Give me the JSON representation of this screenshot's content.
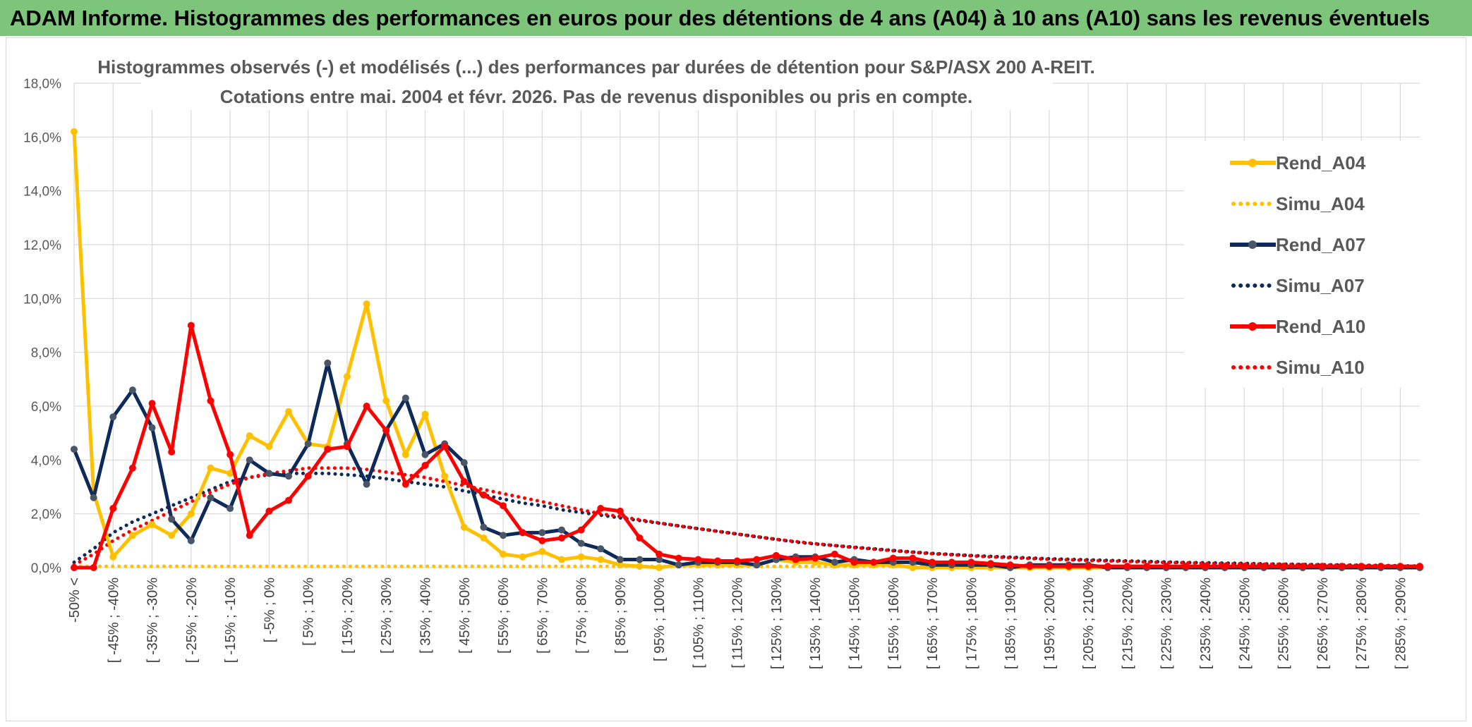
{
  "header": {
    "title": "ADAM Informe. Histogrammes des performances en euros pour des détentions de 4 ans (A04) à 10 ans (A10) sans les revenus éventuels"
  },
  "colors": {
    "header_bg": "#7cc57a",
    "a04": "#ffc000",
    "a07": "#0e2a5a",
    "a07_marker": "#4b5568",
    "a10": "#ff0000",
    "grid": "#d9d9d9"
  },
  "chart_data": {
    "type": "line",
    "title": "Histogrammes observés (-) et modélisés (...) des performances par durées de détention pour S&P/ASX 200 A-REIT.",
    "subtitle": "Cotations entre mai. 2004 et févr. 2026. Pas de revenus disponibles ou pris en compte.",
    "xlabel": "",
    "ylabel": "",
    "ylim": [
      0,
      18
    ],
    "yticks": [
      "0,0%",
      "2,0%",
      "4,0%",
      "6,0%",
      "8,0%",
      "10,0%",
      "12,0%",
      "14,0%",
      "16,0%",
      "18,0%"
    ],
    "legend_position": "right",
    "categories": [
      "-50% <",
      "[ -50% ; -45% [",
      "[ -45% ; -40% [",
      "[ -40% ; -35% [",
      "[ -35% ; -30% [",
      "[ -30% ; -25% [",
      "[ -25% ; -20% [",
      "[ -20% ; -15% [",
      "[ -15% ; -10% [",
      "[ -10% ; -5% [",
      "[ -5% ; 0% [",
      "[ 0% ; 5% [",
      "[ 5% ; 10% [",
      "[ 10% ; 15% [",
      "[ 15% ; 20% [",
      "[ 20% ; 25% [",
      "[ 25% ; 30% [",
      "[ 30% ; 35% [",
      "[ 35% ; 40% [",
      "[ 40% ; 45% [",
      "[ 45% ; 50% [",
      "[ 50% ; 55% [",
      "[ 55% ; 60% [",
      "[ 60% ; 65% [",
      "[ 65% ; 70% [",
      "[ 70% ; 75% [",
      "[ 75% ; 80% [",
      "[ 80% ; 85% [",
      "[ 85% ; 90% [",
      "[ 90% ; 95% [",
      "[ 95% ; 100% [",
      "[ 100% ; 105% [",
      "[ 105% ; 110% [",
      "[ 110% ; 115% [",
      "[ 115% ; 120% [",
      "[ 120% ; 125% [",
      "[ 125% ; 130% [",
      "[ 130% ; 135% [",
      "[ 135% ; 140% [",
      "[ 140% ; 145% [",
      "[ 145% ; 150% [",
      "[ 150% ; 155% [",
      "[ 155% ; 160% [",
      "[ 160% ; 165% [",
      "[ 165% ; 170% [",
      "[ 170% ; 175% [",
      "[ 175% ; 180% [",
      "[ 180% ; 185% [",
      "[ 185% ; 190% [",
      "[ 190% ; 195% [",
      "[ 195% ; 200% [",
      "[ 200% ; 205% [",
      "[ 205% ; 210% [",
      "[ 210% ; 215% [",
      "[ 215% ; 220% [",
      "[ 220% ; 225% [",
      "[ 225% ; 230% [",
      "[ 230% ; 235% [",
      "[ 235% ; 240% [",
      "[ 240% ; 245% [",
      "[ 245% ; 250% [",
      "[ 250% ; 255% [",
      "[ 255% ; 260% [",
      "[ 260% ; 265% [",
      "[ 265% ; 270% [",
      "[ 270% ; 275% [",
      "[ 275% ; 280% [",
      "[ 280% ; 285% [",
      "[ 285% ; 290% [",
      "[ 290% ; 295% ["
    ],
    "xtick_labels": [
      "-50% <",
      "[ -45% ; -40%",
      "[ -35% ; -30%",
      "[ -25% ; -20%",
      "[ -15% ; -10%",
      "[ -5% ; 0%",
      "[ 5% ; 10%",
      "[ 15% ; 20%",
      "[ 25% ; 30%",
      "[ 35% ; 40%",
      "[ 45% ; 50%",
      "[ 55% ; 60%",
      "[ 65% ; 70%",
      "[ 75% ; 80%",
      "[ 85% ; 90%",
      "[ 95% ; 100%",
      "[ 105% ; 110%",
      "[ 115% ; 120%",
      "[ 125% ; 130%",
      "[ 135% ; 140%",
      "[ 145% ; 150%",
      "[ 155% ; 160%",
      "[ 165% ; 170%",
      "[ 175% ; 180%",
      "[ 185% ; 190%",
      "[ 195% ; 200%",
      "[ 205% ; 210%",
      "[ 215% ; 220%",
      "[ 225% ; 230%",
      "[ 235% ; 240%",
      "[ 245% ; 250%",
      "[ 255% ; 260%",
      "[ 265% ; 270%",
      "[ 275% ; 280%",
      "[ 285% ; 290%"
    ],
    "series": [
      {
        "name": "Rend_A04",
        "style": "solid",
        "color": "#ffc000",
        "values": [
          16.2,
          2.8,
          0.4,
          1.2,
          1.6,
          1.2,
          2.0,
          3.7,
          3.5,
          4.9,
          4.5,
          5.8,
          4.6,
          4.5,
          7.1,
          9.8,
          6.2,
          4.2,
          5.7,
          3.4,
          1.5,
          1.1,
          0.5,
          0.4,
          0.6,
          0.3,
          0.4,
          0.3,
          0.1,
          0.05,
          0.0,
          0.1,
          0.1,
          0.1,
          0.1,
          0.1,
          0.3,
          0.2,
          0.2,
          0.1,
          0.1,
          0.1,
          0.1,
          0.0,
          0.0,
          0.0,
          0.0,
          0.0,
          0.0,
          0.0,
          0.0,
          0.0,
          0.0,
          0.0,
          0.0,
          0.0,
          0.0,
          0.0,
          0.0,
          0.0,
          0.0,
          0.0,
          0.0,
          0.0,
          0.0,
          0.0,
          0.0,
          0.0,
          0.0,
          0.0
        ]
      },
      {
        "name": "Simu_A04",
        "style": "dotted",
        "color": "#ffc000",
        "values": [
          0.05,
          0.05,
          0.05,
          0.05,
          0.05,
          0.05,
          0.05,
          0.05,
          0.05,
          0.05,
          0.05,
          0.05,
          0.05,
          0.05,
          0.05,
          0.05,
          0.05,
          0.05,
          0.05,
          0.05,
          0.05,
          0.05,
          0.05,
          0.05,
          0.05,
          0.05,
          0.05,
          0.05,
          0.05,
          0.05,
          0.05,
          0.05,
          0.05,
          0.05,
          0.05,
          0.05,
          0.05,
          0.05,
          0.05,
          0.05,
          0.05,
          0.05,
          0.05,
          0.05,
          0.05,
          0.05,
          0.05,
          0.05,
          0.05,
          0.05,
          0.05,
          0.05,
          0.05,
          0.05,
          0.05,
          0.05,
          0.05,
          0.05,
          0.05,
          0.05,
          0.05,
          0.05,
          0.05,
          0.05,
          0.05,
          0.05,
          0.05,
          0.05,
          0.05,
          0.05
        ]
      },
      {
        "name": "Rend_A07",
        "style": "solid",
        "color": "#0e2a5a",
        "values": [
          4.4,
          2.6,
          5.6,
          6.6,
          5.2,
          1.8,
          1.0,
          2.6,
          2.2,
          4.0,
          3.5,
          3.4,
          4.6,
          7.6,
          4.6,
          3.1,
          5.1,
          6.3,
          4.2,
          4.6,
          3.9,
          1.5,
          1.2,
          1.3,
          1.3,
          1.4,
          0.9,
          0.7,
          0.3,
          0.3,
          0.3,
          0.1,
          0.2,
          0.2,
          0.2,
          0.1,
          0.3,
          0.4,
          0.4,
          0.2,
          0.3,
          0.2,
          0.2,
          0.2,
          0.1,
          0.1,
          0.1,
          0.1,
          0.0,
          0.1,
          0.1,
          0.1,
          0.1,
          0.0,
          0.0,
          0.0,
          0.0,
          0.0,
          0.0,
          0.0,
          0.0,
          0.0,
          0.0,
          0.0,
          0.0,
          0.0,
          0.0,
          0.0,
          0.0,
          0.0
        ]
      },
      {
        "name": "Simu_A07",
        "style": "dotted",
        "color": "#0e2a5a",
        "values": [
          0.2,
          0.7,
          1.3,
          1.7,
          2.0,
          2.3,
          2.6,
          2.9,
          3.2,
          3.35,
          3.45,
          3.5,
          3.5,
          3.5,
          3.45,
          3.4,
          3.3,
          3.2,
          3.1,
          3.0,
          2.85,
          2.7,
          2.55,
          2.4,
          2.3,
          2.15,
          2.05,
          1.95,
          1.85,
          1.75,
          1.65,
          1.55,
          1.45,
          1.35,
          1.25,
          1.15,
          1.05,
          0.95,
          0.88,
          0.82,
          0.76,
          0.7,
          0.64,
          0.58,
          0.53,
          0.49,
          0.45,
          0.42,
          0.39,
          0.36,
          0.33,
          0.31,
          0.29,
          0.27,
          0.25,
          0.23,
          0.21,
          0.19,
          0.18,
          0.17,
          0.16,
          0.14,
          0.13,
          0.12,
          0.11,
          0.1,
          0.09,
          0.08,
          0.07,
          0.06
        ]
      },
      {
        "name": "Rend_A10",
        "style": "solid",
        "color": "#ff0000",
        "values": [
          0.0,
          0.0,
          2.2,
          3.7,
          6.1,
          4.3,
          9.0,
          6.2,
          4.2,
          1.2,
          2.1,
          2.5,
          3.4,
          4.4,
          4.5,
          6.0,
          5.1,
          3.1,
          3.8,
          4.5,
          3.2,
          2.7,
          2.3,
          1.3,
          1.0,
          1.1,
          1.4,
          2.2,
          2.1,
          1.1,
          0.5,
          0.35,
          0.3,
          0.25,
          0.25,
          0.3,
          0.45,
          0.3,
          0.35,
          0.5,
          0.2,
          0.2,
          0.35,
          0.35,
          0.2,
          0.2,
          0.2,
          0.15,
          0.1,
          0.05,
          0.05,
          0.05,
          0.05,
          0.05,
          0.05,
          0.05,
          0.05,
          0.05,
          0.05,
          0.05,
          0.05,
          0.05,
          0.05,
          0.05,
          0.05,
          0.05,
          0.05,
          0.05,
          0.05,
          0.05
        ]
      },
      {
        "name": "Simu_A10",
        "style": "dotted",
        "color": "#ff0000",
        "values": [
          0.1,
          0.5,
          1.0,
          1.4,
          1.75,
          2.1,
          2.45,
          2.8,
          3.1,
          3.35,
          3.5,
          3.6,
          3.7,
          3.7,
          3.7,
          3.65,
          3.55,
          3.45,
          3.35,
          3.2,
          3.05,
          2.9,
          2.75,
          2.6,
          2.45,
          2.3,
          2.15,
          2.0,
          1.9,
          1.78,
          1.66,
          1.55,
          1.45,
          1.35,
          1.25,
          1.15,
          1.05,
          0.97,
          0.89,
          0.82,
          0.75,
          0.69,
          0.63,
          0.57,
          0.52,
          0.48,
          0.44,
          0.4,
          0.37,
          0.34,
          0.31,
          0.29,
          0.27,
          0.25,
          0.23,
          0.21,
          0.19,
          0.18,
          0.16,
          0.15,
          0.14,
          0.13,
          0.12,
          0.11,
          0.1,
          0.09,
          0.08,
          0.07,
          0.06,
          0.05
        ]
      }
    ]
  }
}
